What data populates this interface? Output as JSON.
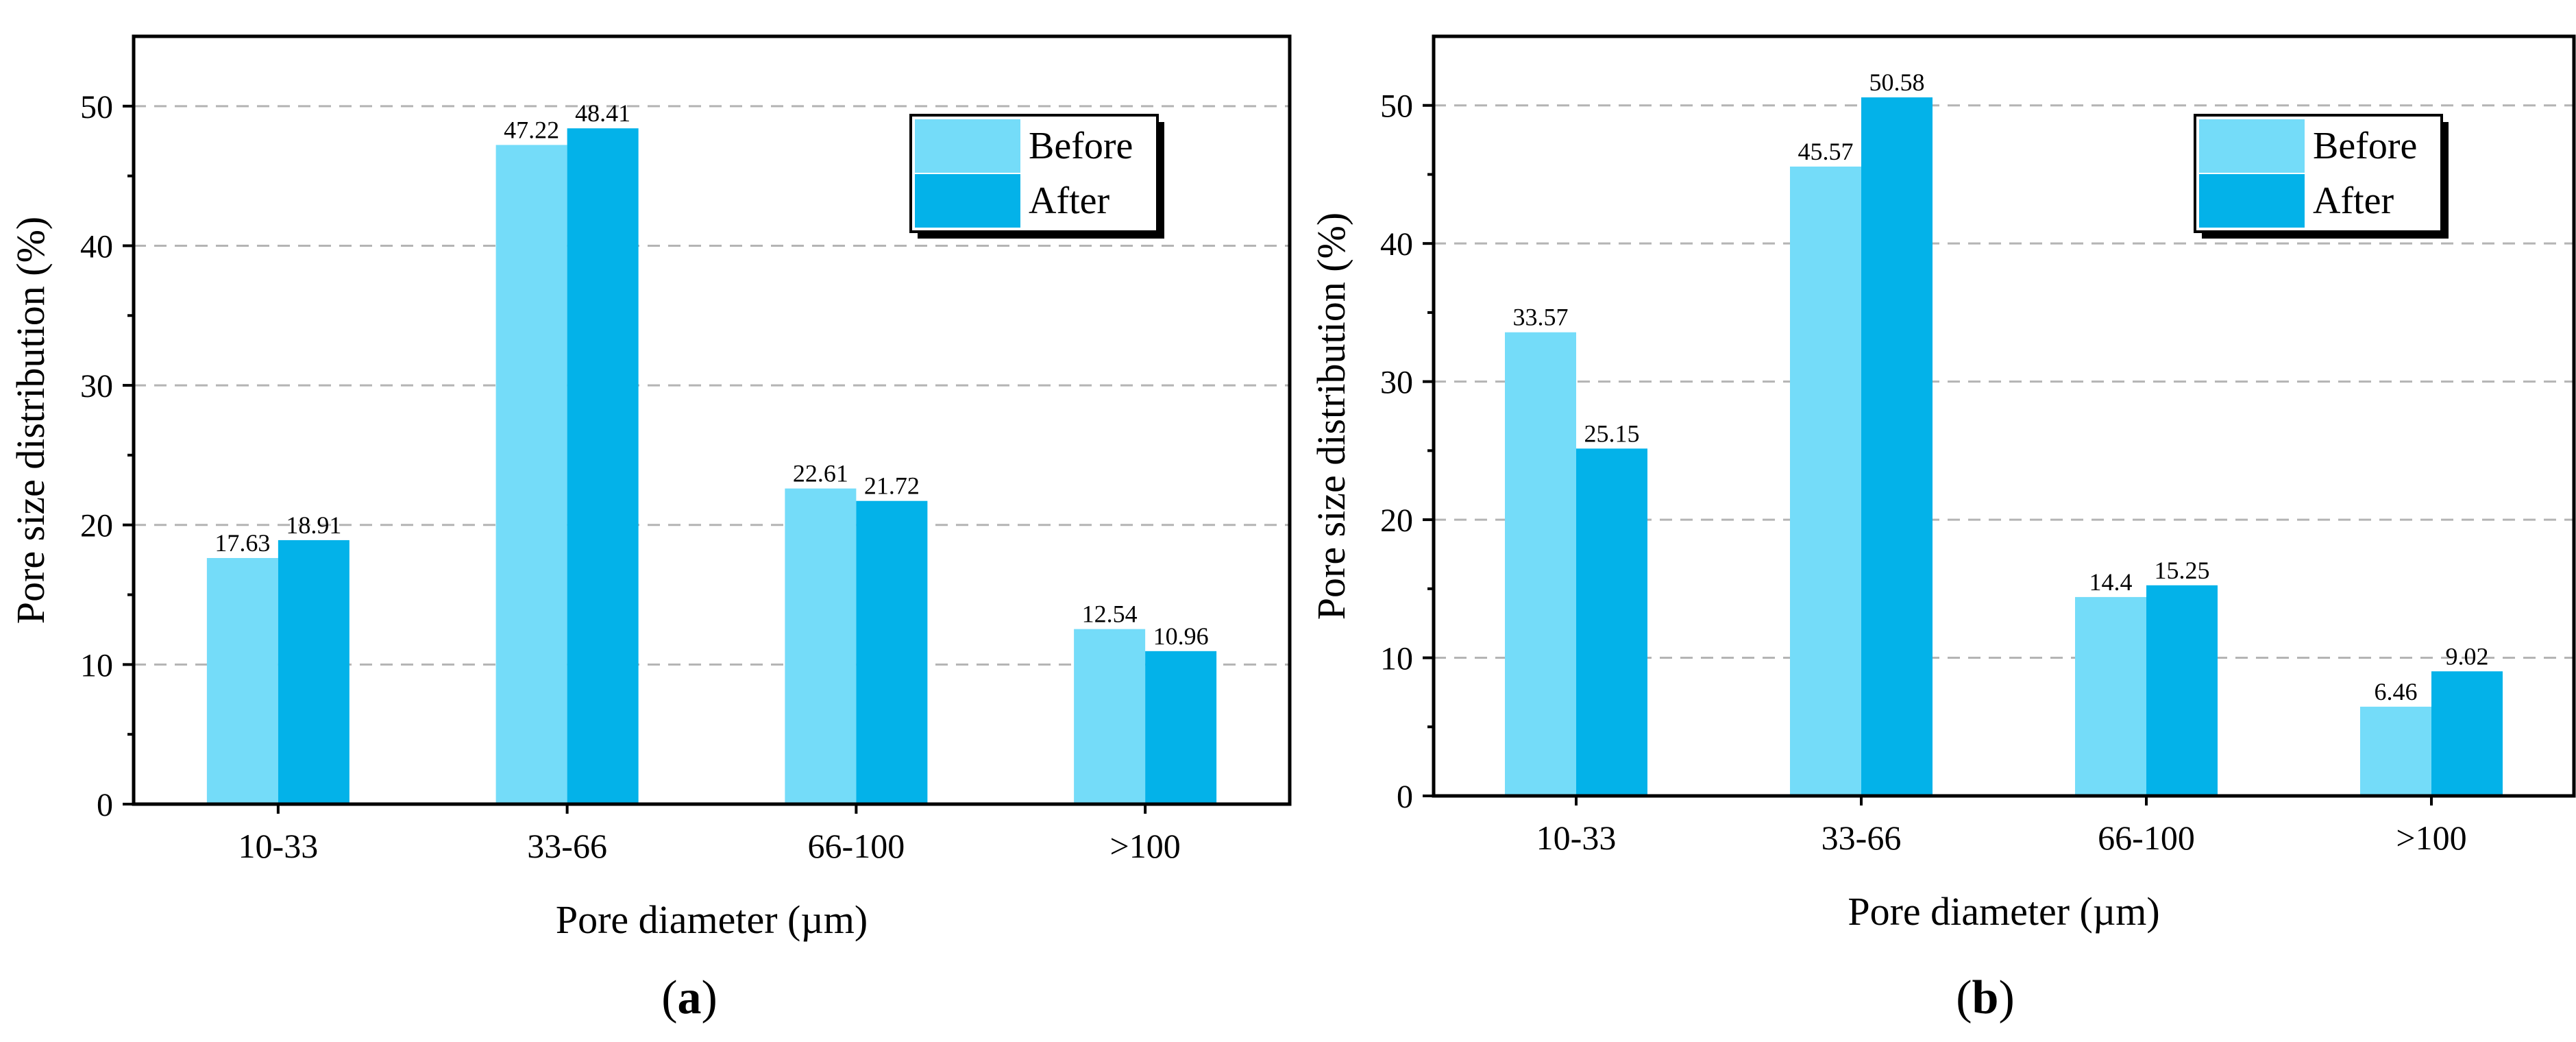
{
  "colors": {
    "before": "#74dcf9",
    "after": "#03b2e9",
    "axis": "#000000",
    "grid": "#b4b4b4",
    "legend_shadow": "#000000"
  },
  "chart_data": [
    {
      "type": "bar",
      "panel_label": "a",
      "xlabel": "Pore diameter (µm)",
      "ylabel": "Pore size distribution (%)",
      "ylim": [
        0,
        55
      ],
      "yticks": [
        0,
        10,
        20,
        30,
        40,
        50
      ],
      "grid": true,
      "legend_position": "top-right",
      "categories": [
        "10-33",
        "33-66",
        "66-100",
        ">100"
      ],
      "series": [
        {
          "name": "Before",
          "color_key": "before",
          "values": [
            17.63,
            47.22,
            22.61,
            12.54
          ],
          "labels": [
            "17.63",
            "47.22",
            "22.61",
            "12.54"
          ]
        },
        {
          "name": "After",
          "color_key": "after",
          "values": [
            18.91,
            48.41,
            21.72,
            10.96
          ],
          "labels": [
            "18.91",
            "48.41",
            "21.72",
            "10.96"
          ]
        }
      ]
    },
    {
      "type": "bar",
      "panel_label": "b",
      "xlabel": "Pore diameter (µm)",
      "ylabel": "Pore size distribution (%)",
      "ylim": [
        0,
        55
      ],
      "yticks": [
        0,
        10,
        20,
        30,
        40,
        50
      ],
      "grid": true,
      "legend_position": "top-right",
      "categories": [
        "10-33",
        "33-66",
        "66-100",
        ">100"
      ],
      "series": [
        {
          "name": "Before",
          "color_key": "before",
          "values": [
            33.57,
            45.57,
            14.4,
            6.46
          ],
          "labels": [
            "33.57",
            "45.57",
            "14.4",
            "6.46"
          ]
        },
        {
          "name": "After",
          "color_key": "after",
          "values": [
            25.15,
            50.58,
            15.25,
            9.02
          ],
          "labels": [
            "25.15",
            "50.58",
            "15.25",
            "9.02"
          ]
        }
      ]
    }
  ]
}
